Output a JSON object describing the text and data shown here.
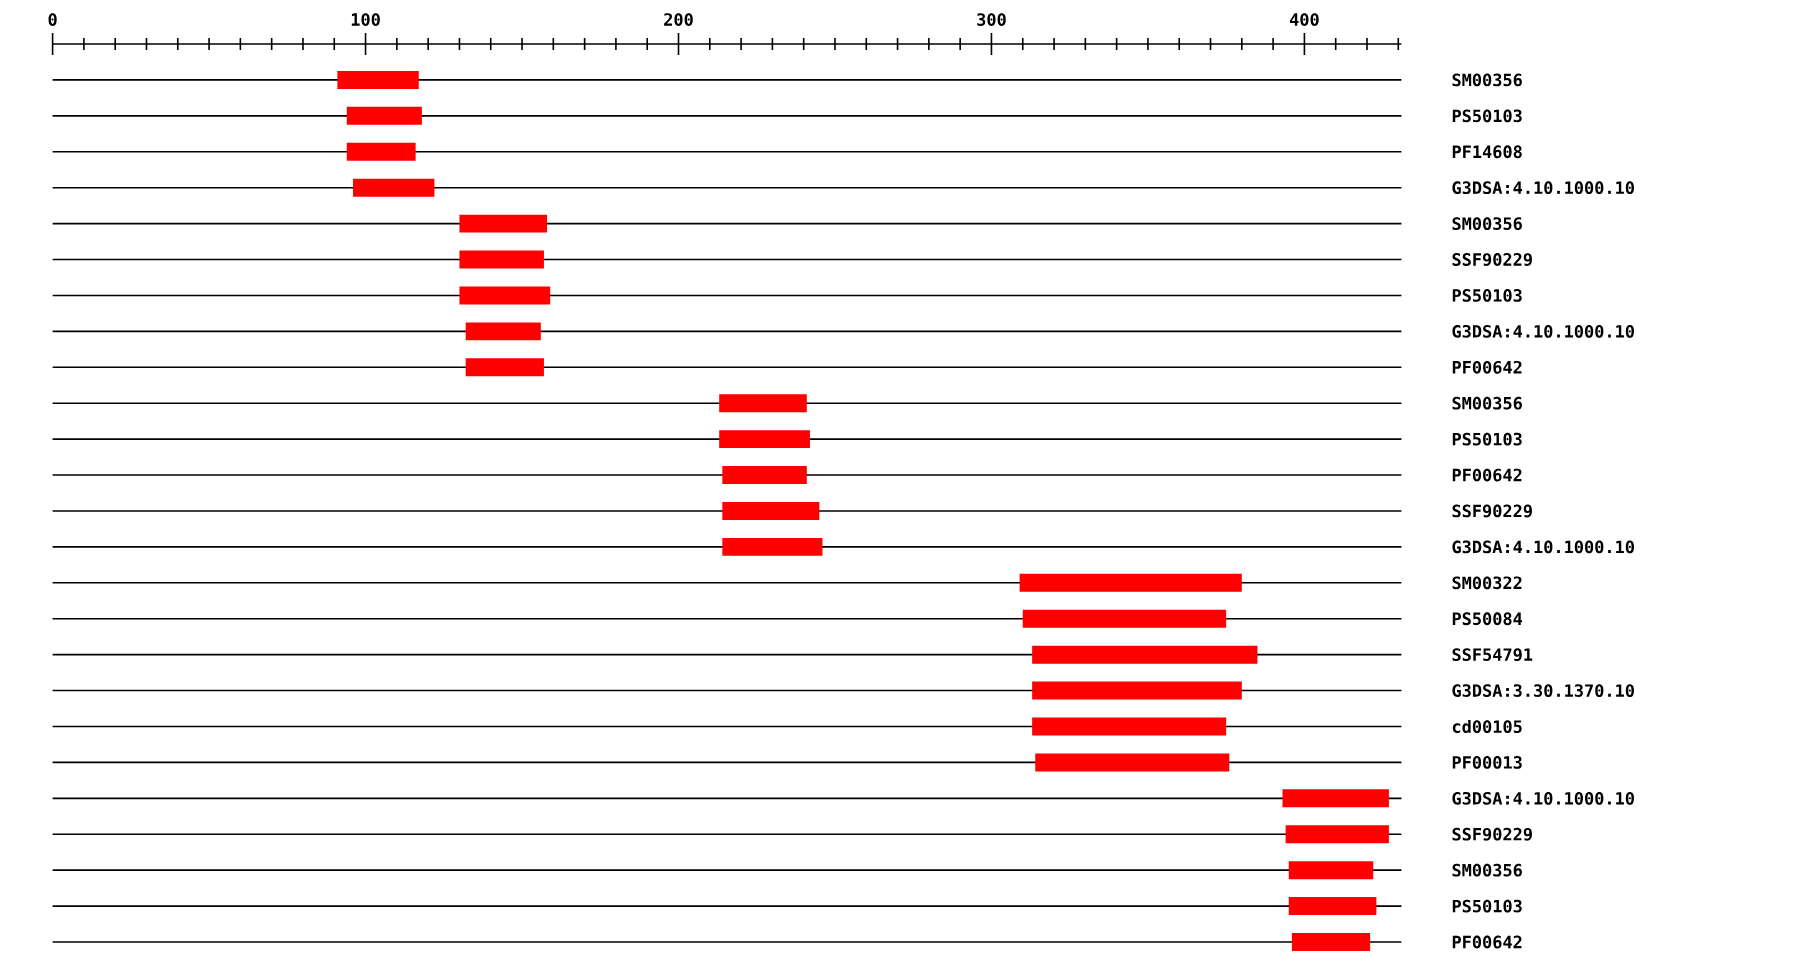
{
  "chart_data": {
    "type": "bar",
    "orientation": "horizontal",
    "categories": [
      "SM00356",
      "PS50103",
      "PF14608",
      "G3DSA:4.10.1000.10",
      "SM00356",
      "SSF90229",
      "PS50103",
      "G3DSA:4.10.1000.10",
      "PF00642",
      "SM00356",
      "PS50103",
      "PF00642",
      "SSF90229",
      "G3DSA:4.10.1000.10",
      "SM00322",
      "PS50084",
      "SSF54791",
      "G3DSA:3.30.1370.10",
      "cd00105",
      "PF00013",
      "G3DSA:4.10.1000.10",
      "SSF90229",
      "SM00356",
      "PS50103",
      "PF00642"
    ],
    "base": [
      91,
      94,
      94,
      96,
      130,
      130,
      130,
      132,
      132,
      213,
      213,
      214,
      214,
      214,
      309,
      310,
      313,
      313,
      313,
      314,
      393,
      394,
      395,
      395,
      396
    ],
    "values": [
      26,
      24,
      22,
      26,
      28,
      27,
      29,
      24,
      25,
      28,
      29,
      27,
      31,
      32,
      71,
      65,
      72,
      67,
      62,
      62,
      34,
      33,
      27,
      28,
      25
    ],
    "color": "#ff0000",
    "xlim": [
      0,
      431
    ],
    "xticks": [
      0,
      {
        "value": 10,
        "label": null
      },
      {
        "value": 20,
        "label": null
      },
      {
        "value": 30,
        "label": null
      },
      {
        "value": 40,
        "label": null
      },
      {
        "value": 50,
        "label": null
      },
      {
        "value": 60,
        "label": null
      },
      {
        "value": 70,
        "label": null
      },
      {
        "value": 80,
        "label": null
      },
      {
        "value": 90,
        "label": null
      },
      100,
      {
        "value": 110,
        "label": null
      },
      {
        "value": 120,
        "label": null
      },
      {
        "value": 130,
        "label": null
      },
      {
        "value": 140,
        "label": null
      },
      {
        "value": 150,
        "label": null
      },
      {
        "value": 160,
        "label": null
      },
      {
        "value": 170,
        "label": null
      },
      {
        "value": 180,
        "label": null
      },
      {
        "value": 190,
        "label": null
      },
      200,
      {
        "value": 210,
        "label": null
      },
      {
        "value": 220,
        "label": null
      },
      {
        "value": 230,
        "label": null
      },
      {
        "value": 240,
        "label": null
      },
      {
        "value": 250,
        "label": null
      },
      {
        "value": 260,
        "label": null
      },
      {
        "value": 270,
        "label": null
      },
      {
        "value": 280,
        "label": null
      },
      {
        "value": 290,
        "label": null
      },
      300,
      {
        "value": 310,
        "label": null
      },
      {
        "value": 320,
        "label": null
      },
      {
        "value": 330,
        "label": null
      },
      {
        "value": 340,
        "label": null
      },
      {
        "value": 350,
        "label": null
      },
      {
        "value": 360,
        "label": null
      },
      {
        "value": 370,
        "label": null
      },
      {
        "value": 380,
        "label": null
      },
      {
        "value": 390,
        "label": null
      },
      400,
      {
        "value": 410,
        "label": null
      },
      {
        "value": 420,
        "label": null
      },
      {
        "value": 430,
        "label": null
      }
    ],
    "grid": "y"
  }
}
